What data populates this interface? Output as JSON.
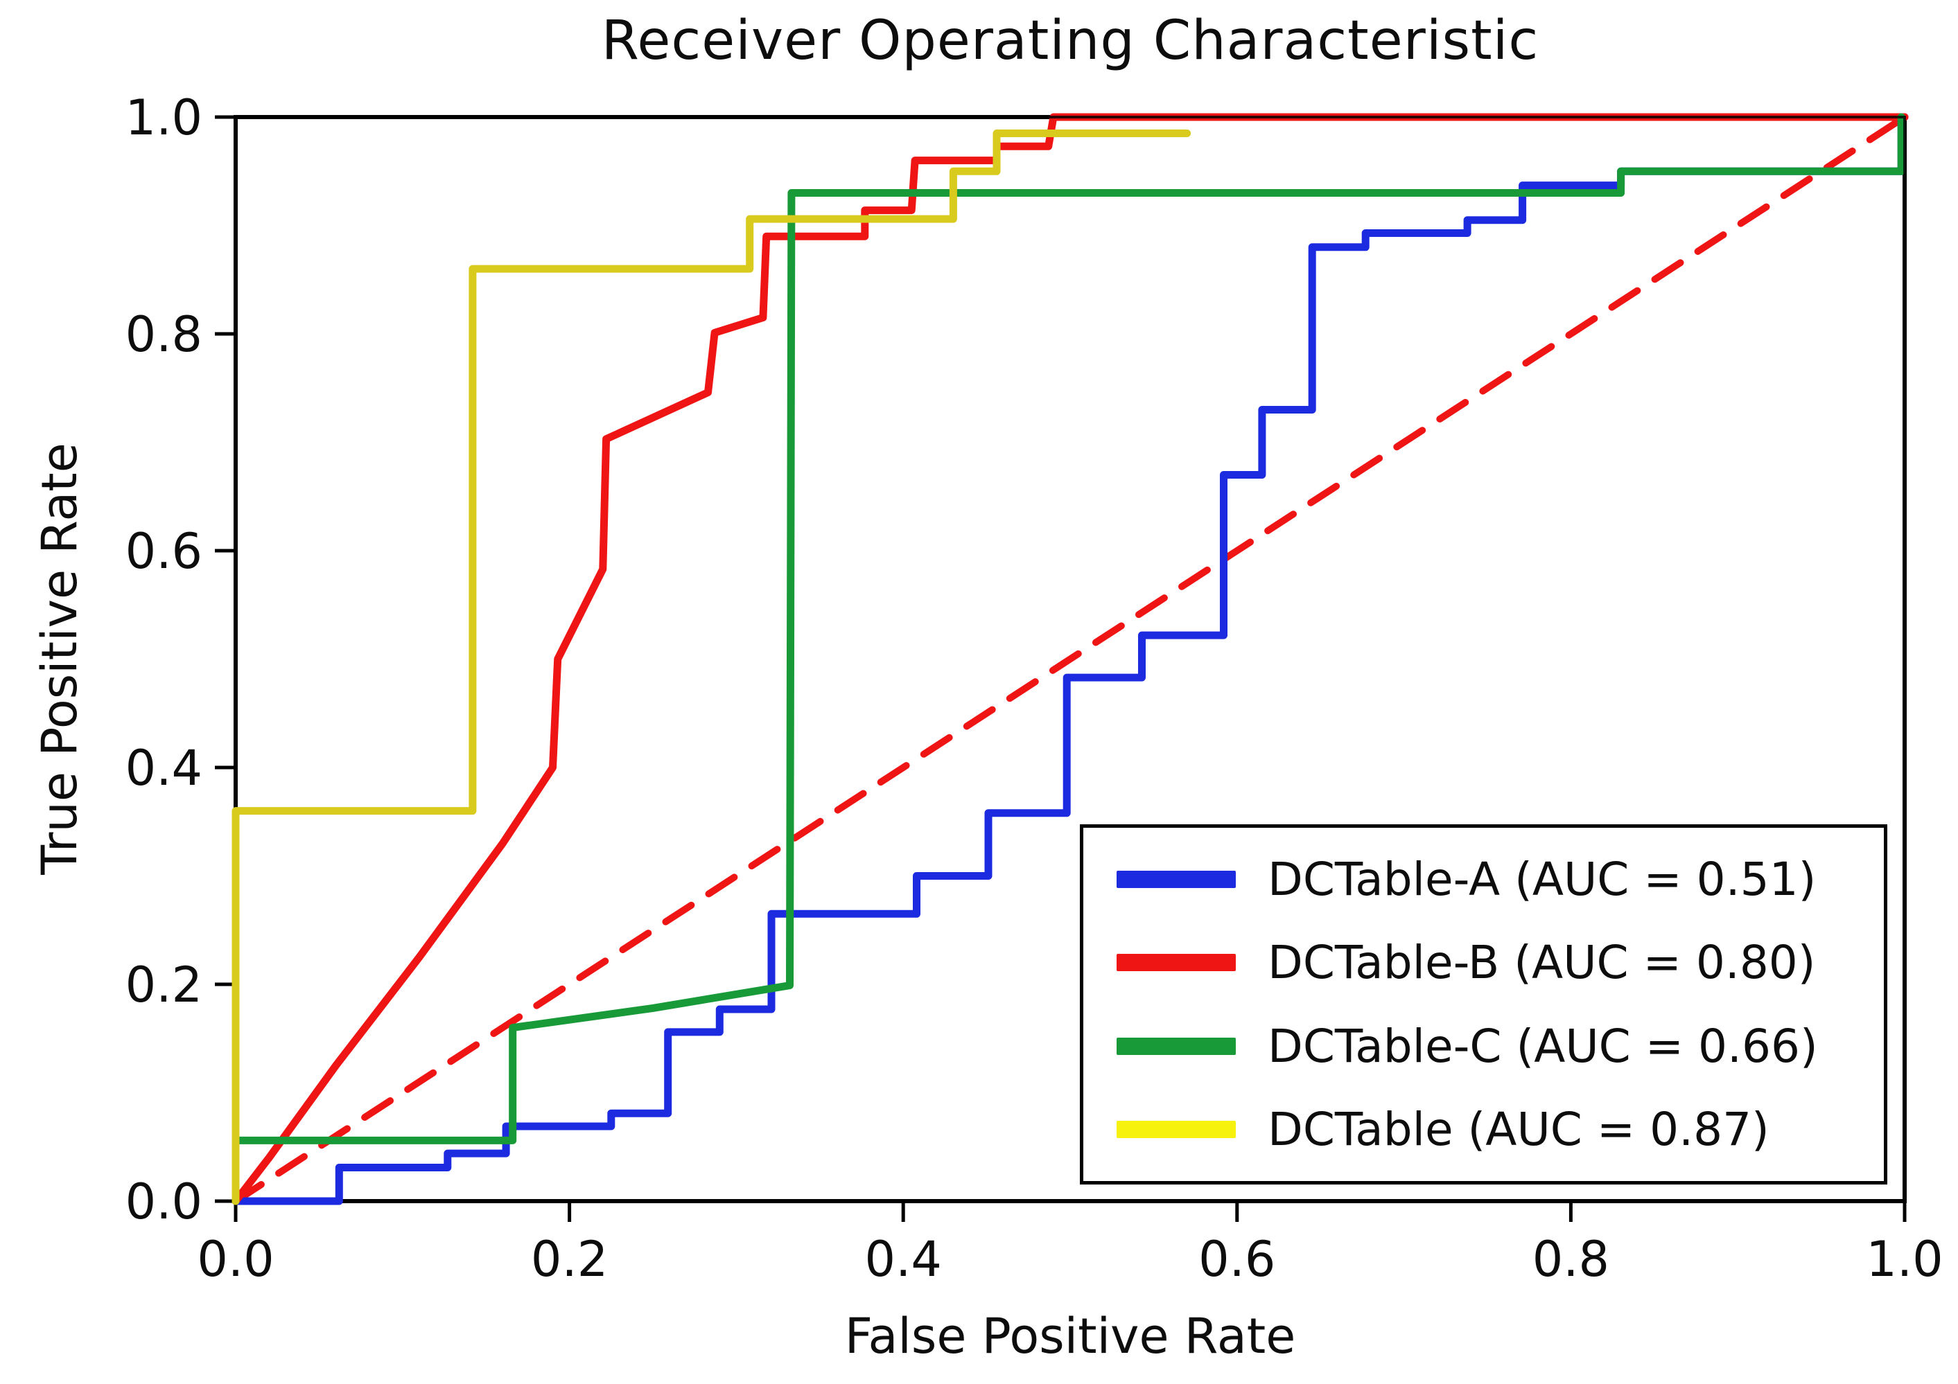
{
  "figure": {
    "background": "#ffffff",
    "frame_color": "#000000"
  },
  "chart_data": {
    "type": "line",
    "subtype": "roc-curves",
    "title": "Receiver Operating Characteristic",
    "xlabel": "False Positive Rate",
    "ylabel": "True Positive Rate",
    "xlim": [
      0,
      1
    ],
    "ylim": [
      0,
      1
    ],
    "grid": false,
    "legend_position": "lower right",
    "x_tick_labels": [
      "0.0",
      "0.2",
      "0.4",
      "0.6",
      "0.8",
      "1.0"
    ],
    "x_tick_values": [
      0,
      0.2,
      0.4,
      0.6,
      0.8,
      1.0
    ],
    "y_tick_labels": [
      "0.0",
      "0.2",
      "0.4",
      "0.6",
      "0.8",
      "1.0"
    ],
    "y_tick_values": [
      0,
      0.2,
      0.4,
      0.6,
      0.8,
      1.0
    ],
    "reference_line": {
      "name": "chance-diagonal",
      "style": "dashed",
      "color": "#f01515",
      "points": [
        [
          0,
          0
        ],
        [
          1,
          1
        ]
      ]
    },
    "series": [
      {
        "name": "DCTable-A",
        "auc": 0.51,
        "legend": "DCTable-A (AUC = 0.51)",
        "color": "#1c2be0",
        "points": [
          [
            0,
            0
          ],
          [
            0.062,
            0
          ],
          [
            0.062,
            0.031
          ],
          [
            0.127,
            0.031
          ],
          [
            0.127,
            0.044
          ],
          [
            0.162,
            0.044
          ],
          [
            0.162,
            0.069
          ],
          [
            0.225,
            0.069
          ],
          [
            0.225,
            0.081
          ],
          [
            0.259,
            0.081
          ],
          [
            0.259,
            0.156
          ],
          [
            0.29,
            0.156
          ],
          [
            0.29,
            0.177
          ],
          [
            0.321,
            0.177
          ],
          [
            0.321,
            0.265
          ],
          [
            0.408,
            0.265
          ],
          [
            0.408,
            0.3
          ],
          [
            0.451,
            0.3
          ],
          [
            0.451,
            0.358
          ],
          [
            0.498,
            0.358
          ],
          [
            0.498,
            0.483
          ],
          [
            0.543,
            0.483
          ],
          [
            0.543,
            0.522
          ],
          [
            0.592,
            0.522
          ],
          [
            0.592,
            0.67
          ],
          [
            0.615,
            0.67
          ],
          [
            0.615,
            0.73
          ],
          [
            0.645,
            0.73
          ],
          [
            0.645,
            0.88
          ],
          [
            0.677,
            0.88
          ],
          [
            0.677,
            0.893
          ],
          [
            0.738,
            0.893
          ],
          [
            0.738,
            0.905
          ],
          [
            0.771,
            0.905
          ],
          [
            0.771,
            0.937
          ],
          [
            0.83,
            0.937
          ],
          [
            0.83,
            0.95
          ],
          [
            0.998,
            0.95
          ],
          [
            0.998,
            1
          ],
          [
            1,
            1
          ]
        ]
      },
      {
        "name": "DCTable-B",
        "auc": 0.8,
        "legend": "DCTable-B (AUC = 0.80)",
        "color": "#f01515",
        "points": [
          [
            0,
            0
          ],
          [
            0.02,
            0.04
          ],
          [
            0.06,
            0.125
          ],
          [
            0.11,
            0.225
          ],
          [
            0.16,
            0.33
          ],
          [
            0.19,
            0.4
          ],
          [
            0.193,
            0.5
          ],
          [
            0.22,
            0.583
          ],
          [
            0.222,
            0.703
          ],
          [
            0.283,
            0.746
          ],
          [
            0.287,
            0.801
          ],
          [
            0.316,
            0.815
          ],
          [
            0.318,
            0.89
          ],
          [
            0.377,
            0.89
          ],
          [
            0.377,
            0.914
          ],
          [
            0.405,
            0.914
          ],
          [
            0.407,
            0.96
          ],
          [
            0.456,
            0.96
          ],
          [
            0.456,
            0.973
          ],
          [
            0.487,
            0.973
          ],
          [
            0.49,
            1
          ],
          [
            1,
            1
          ]
        ]
      },
      {
        "name": "DCTable-C",
        "auc": 0.66,
        "legend": "DCTable-C (AUC = 0.66)",
        "color": "#189a38",
        "points": [
          [
            0,
            0
          ],
          [
            0,
            0.056
          ],
          [
            0.166,
            0.056
          ],
          [
            0.166,
            0.16
          ],
          [
            0.25,
            0.178
          ],
          [
            0.332,
            0.199
          ],
          [
            0.333,
            0.93
          ],
          [
            0.83,
            0.93
          ],
          [
            0.83,
            0.95
          ],
          [
            0.998,
            0.95
          ],
          [
            0.998,
            1
          ]
        ]
      },
      {
        "name": "DCTable",
        "auc": 0.87,
        "legend": "DCTable (AUC = 0.87)",
        "color": "#d9cb1d",
        "legend_color": "#f7f10e",
        "points": [
          [
            0,
            0
          ],
          [
            0,
            0.36
          ],
          [
            0.142,
            0.36
          ],
          [
            0.142,
            0.86
          ],
          [
            0.308,
            0.86
          ],
          [
            0.308,
            0.906
          ],
          [
            0.43,
            0.906
          ],
          [
            0.43,
            0.95
          ],
          [
            0.456,
            0.95
          ],
          [
            0.456,
            0.985
          ],
          [
            0.57,
            0.985
          ]
        ]
      }
    ]
  }
}
